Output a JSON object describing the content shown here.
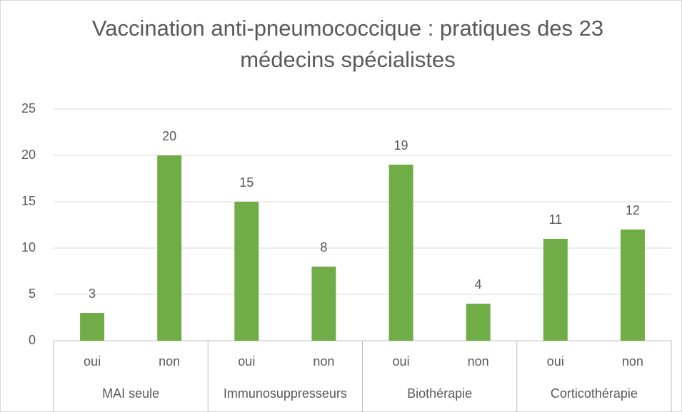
{
  "chart_data": {
    "type": "bar",
    "title": "Vaccination anti-pneumococcique : pratiques des 23 médecins spécialistes",
    "categories": [
      "oui",
      "non",
      "oui",
      "non",
      "oui",
      "non",
      "oui",
      "non"
    ],
    "groups": [
      "MAI seule",
      "Immunosuppresseurs",
      "Biothérapie",
      "Corticothérapie"
    ],
    "values": [
      3,
      20,
      15,
      8,
      19,
      4,
      11,
      12
    ],
    "color": "#70ad47",
    "ylim": [
      0,
      25
    ],
    "yticks": [
      0,
      5,
      10,
      15,
      20,
      25
    ],
    "grid": true
  }
}
